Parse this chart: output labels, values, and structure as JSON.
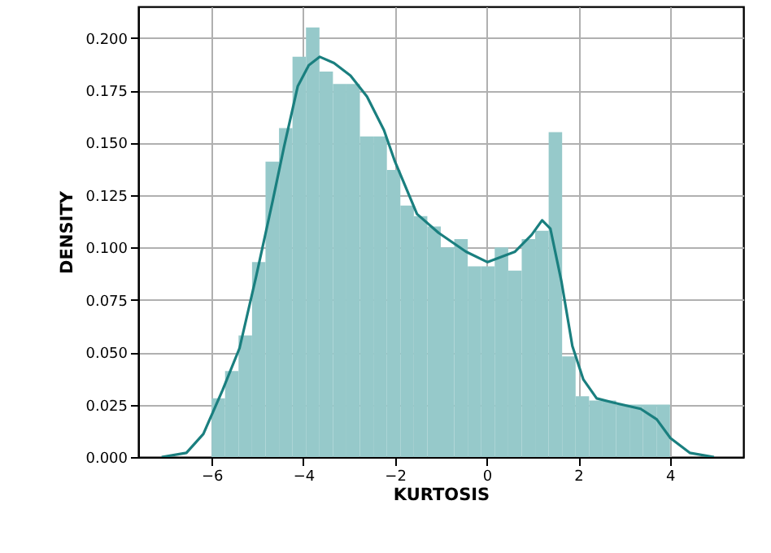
{
  "chart_data": {
    "type": "histogram",
    "xlabel": "KURTOSIS",
    "ylabel": "DENSITY",
    "xlim": [
      -7.6,
      5.6
    ],
    "ylim": [
      0,
      0.215
    ],
    "xticks": [
      -6,
      -4,
      -2,
      0,
      2,
      4
    ],
    "yticks": [
      {
        "value": 0,
        "label": "0.000"
      },
      {
        "value": 0.025,
        "label": "0.025"
      },
      {
        "value": 0.05,
        "label": "0.050"
      },
      {
        "value": 0.075,
        "label": "0.075"
      },
      {
        "value": 0.1,
        "label": "0.100"
      },
      {
        "value": 0.125,
        "label": "0.125"
      },
      {
        "value": 0.15,
        "label": "0.150"
      },
      {
        "value": 0.175,
        "label": "0.175"
      },
      {
        "value": 0.2,
        "label": "0.200"
      }
    ],
    "grid": true,
    "series": [
      {
        "color": "#96c9ca",
        "bins": [
          -6,
          -5.706,
          -5.412,
          -5.118,
          -4.824,
          -4.529,
          -4.235,
          -3.941,
          -3.647,
          -3.353,
          -3.059,
          -2.765,
          -2.471,
          -2.176,
          -1.882,
          -1.588,
          -1.294,
          -1.0,
          -0.706,
          -0.412,
          -0.118,
          0.176,
          0.471,
          0.765,
          1.059,
          1.353,
          1.647,
          1.941,
          2.235,
          2.529,
          2.824,
          3.118,
          3.412,
          3.706,
          4.0
        ],
        "values": [
          0.028,
          0.041,
          0.058,
          0.093,
          0.141,
          0.157,
          0.191,
          0.205,
          0.184,
          0.178,
          0.178,
          0.153,
          0.153,
          0.137,
          0.12,
          0.115,
          0.11,
          0.1,
          0.104,
          0.091,
          0.091,
          0.1,
          0.089,
          0.104,
          0.108,
          0.155,
          0.048,
          0.029,
          0.027,
          0.027,
          0.025,
          0.025,
          0.025,
          0.025
        ]
      },
      {
        "type": "line",
        "color": "#1a7f7f",
        "line_style": "solid",
        "x": [
          -7.09,
          -6.55,
          -6.18,
          -5.76,
          -5.39,
          -5.03,
          -4.67,
          -4.42,
          -4.12,
          -3.88,
          -3.64,
          -3.33,
          -2.97,
          -2.61,
          -2.24,
          -2.0,
          -1.52,
          -1.05,
          -0.45,
          0.02,
          0.62,
          0.98,
          1.21,
          1.39,
          1.63,
          1.87,
          2.11,
          2.4,
          2.76,
          3.36,
          3.71,
          4.01,
          4.43,
          4.96
        ],
        "values": [
          0.0,
          0.002,
          0.011,
          0.032,
          0.052,
          0.086,
          0.122,
          0.148,
          0.177,
          0.187,
          0.191,
          0.188,
          0.182,
          0.172,
          0.156,
          0.141,
          0.116,
          0.107,
          0.098,
          0.093,
          0.098,
          0.106,
          0.113,
          0.109,
          0.084,
          0.053,
          0.037,
          0.028,
          0.026,
          0.023,
          0.018,
          0.009,
          0.002,
          0.0
        ]
      }
    ]
  }
}
